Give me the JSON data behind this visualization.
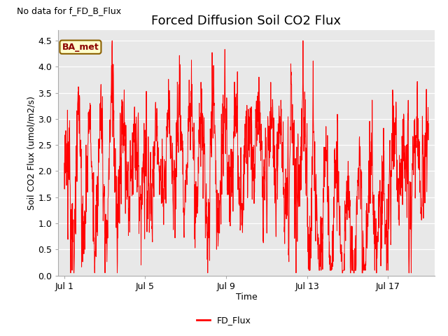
{
  "title": "Forced Diffusion Soil CO2 Flux",
  "no_data_text": "No data for f_FD_B_Flux",
  "xlabel": "Time",
  "ylabel": "Soil CO2 Flux (umol/m2/s)",
  "ylim": [
    0.0,
    4.7
  ],
  "yticks": [
    0.0,
    0.5,
    1.0,
    1.5,
    2.0,
    2.5,
    3.0,
    3.5,
    4.0,
    4.5
  ],
  "line_color": "#FF0000",
  "line_label": "FD_Flux",
  "legend_box_label": "BA_met",
  "legend_box_facecolor": "#FFFFCC",
  "legend_box_edgecolor": "#8B6000",
  "plot_bg_color": "#E8E8E8",
  "fig_bg_color": "#FFFFFF",
  "xtick_labels": [
    "Jul 1",
    "Jul 5",
    "Jul 9",
    "Jul 13",
    "Jul 17"
  ],
  "xtick_positions": [
    0,
    4,
    8,
    12,
    16
  ],
  "title_fontsize": 13,
  "axis_label_fontsize": 9,
  "tick_fontsize": 9,
  "no_data_fontsize": 9
}
